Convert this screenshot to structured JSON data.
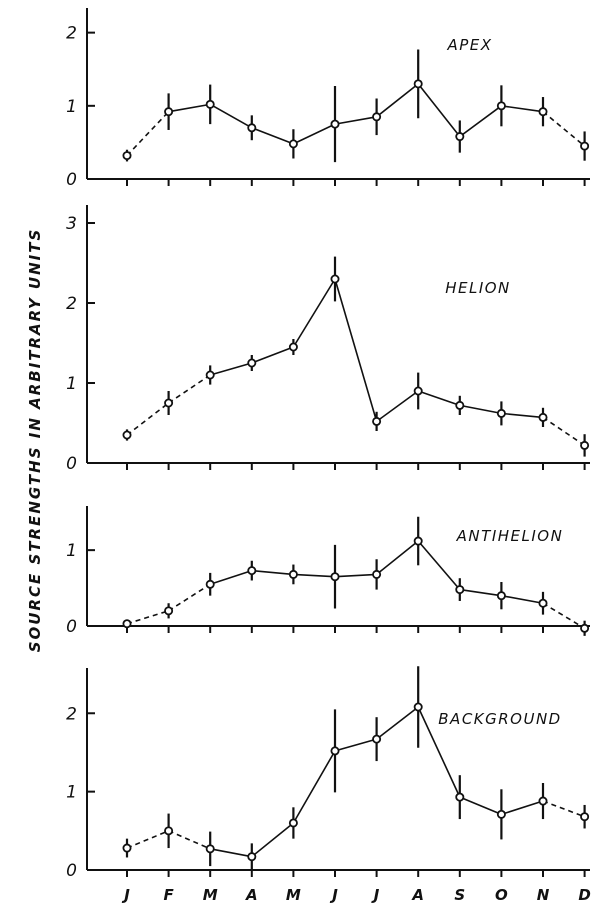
{
  "ylabel": "SOURCE   STRENGTHS   IN  ARBITRARY   UNITS",
  "chart_data": [
    {
      "type": "line",
      "title": "APEX",
      "categories": [
        "J",
        "F",
        "M",
        "A",
        "M",
        "J",
        "J",
        "A",
        "S",
        "O",
        "N",
        "D"
      ],
      "ylim": [
        0,
        2.2
      ],
      "yticks": [
        0,
        1,
        2
      ],
      "values": [
        0.32,
        0.92,
        1.02,
        0.7,
        0.48,
        0.75,
        0.85,
        1.3,
        0.58,
        1.0,
        0.92,
        0.45
      ],
      "errors": [
        0.08,
        0.25,
        0.27,
        0.17,
        0.2,
        0.52,
        0.25,
        0.47,
        0.22,
        0.28,
        0.2,
        0.2
      ],
      "dashed_segments": [
        0,
        10
      ]
    },
    {
      "type": "line",
      "title": "HELION",
      "categories": [
        "J",
        "F",
        "M",
        "A",
        "M",
        "J",
        "J",
        "A",
        "S",
        "O",
        "N",
        "D"
      ],
      "ylim": [
        0,
        3.1
      ],
      "yticks": [
        0,
        1,
        2,
        3
      ],
      "values": [
        0.35,
        0.75,
        1.1,
        1.25,
        1.45,
        2.3,
        0.52,
        0.9,
        0.72,
        0.62,
        0.57,
        0.22
      ],
      "errors": [
        0.07,
        0.15,
        0.12,
        0.1,
        0.1,
        0.28,
        0.12,
        0.23,
        0.12,
        0.15,
        0.12,
        0.14
      ],
      "dashed_segments": [
        0,
        1,
        10
      ]
    },
    {
      "type": "line",
      "title": "ANTIHELION",
      "categories": [
        "J",
        "F",
        "M",
        "A",
        "M",
        "J",
        "J",
        "A",
        "S",
        "O",
        "N",
        "D"
      ],
      "ylim": [
        0,
        1.45
      ],
      "yticks": [
        0,
        1
      ],
      "values": [
        0.03,
        0.2,
        0.55,
        0.73,
        0.68,
        0.65,
        0.68,
        1.12,
        0.48,
        0.4,
        0.3,
        -0.03
      ],
      "errors": [
        0.05,
        0.1,
        0.15,
        0.13,
        0.13,
        0.42,
        0.2,
        0.32,
        0.15,
        0.18,
        0.15,
        0.1
      ],
      "dashed_segments": [
        0,
        1,
        10
      ]
    },
    {
      "type": "line",
      "title": "BACKGROUND",
      "categories": [
        "J",
        "F",
        "M",
        "A",
        "M",
        "J",
        "J",
        "A",
        "S",
        "O",
        "N",
        "D"
      ],
      "ylim": [
        0,
        2.45
      ],
      "yticks": [
        0,
        1,
        2
      ],
      "values": [
        0.28,
        0.5,
        0.27,
        0.17,
        0.6,
        1.52,
        1.67,
        2.08,
        0.93,
        0.71,
        0.88,
        0.68
      ],
      "errors": [
        0.12,
        0.22,
        0.22,
        0.17,
        0.2,
        0.53,
        0.28,
        0.52,
        0.28,
        0.32,
        0.23,
        0.15
      ],
      "dashed_segments": [
        0,
        1,
        10
      ]
    }
  ]
}
